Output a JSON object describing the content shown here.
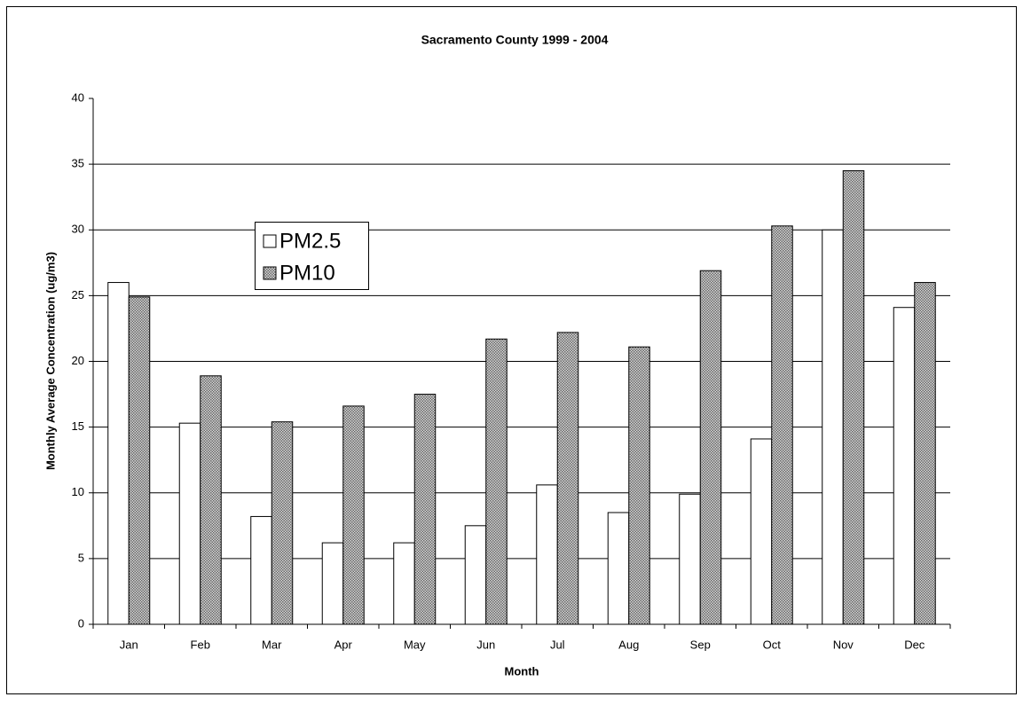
{
  "chart_data": {
    "type": "bar",
    "title": "Sacramento County 1999 - 2004",
    "x_label": "Month",
    "y_label": "Monthly Average Concentration (ug/m3)",
    "categories": [
      "Jan",
      "Feb",
      "Mar",
      "Apr",
      "May",
      "Jun",
      "Jul",
      "Aug",
      "Sep",
      "Oct",
      "Nov",
      "Dec"
    ],
    "series": [
      {
        "name": "PM2.5",
        "color": "#ffffff",
        "values": [
          26,
          15.3,
          8.2,
          6.2,
          6.2,
          7.5,
          10.6,
          8.5,
          9.9,
          14.1,
          30,
          24.1
        ]
      },
      {
        "name": "PM10",
        "color": "#666666",
        "pattern": "stipple",
        "values": [
          24.9,
          18.9,
          15.4,
          16.6,
          17.5,
          21.7,
          22.2,
          21.1,
          26.9,
          30.3,
          34.5,
          26
        ]
      }
    ],
    "ylim": [
      0,
      40
    ],
    "yticks": [
      0,
      5,
      10,
      15,
      20,
      25,
      30,
      35,
      40
    ],
    "grid": true,
    "legend": "upper-left"
  }
}
